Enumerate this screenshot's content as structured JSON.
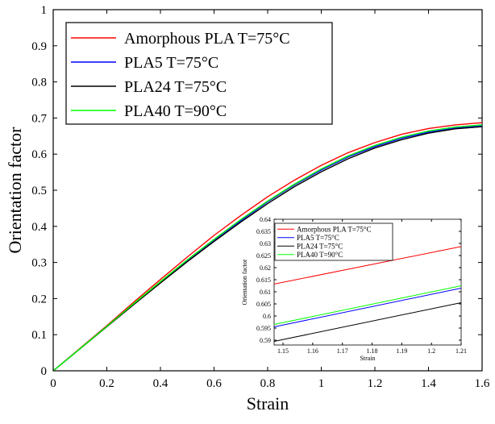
{
  "colors": {
    "amorphous": "#ff0000",
    "pla5": "#0000ff",
    "pla24": "#000000",
    "pla40": "#00ff00"
  },
  "chart_data": [
    {
      "type": "line",
      "xlabel": "Strain",
      "ylabel": "Orientation factor",
      "xlim": [
        0,
        1.6
      ],
      "ylim": [
        0,
        1
      ],
      "xticks": [
        "0",
        "0.2",
        "0.4",
        "0.6",
        "0.8",
        "1",
        "1.2",
        "1.4",
        "1.6"
      ],
      "yticks": [
        "0",
        "0.1",
        "0.2",
        "0.3",
        "0.4",
        "0.5",
        "0.6",
        "0.7",
        "0.8",
        "0.9",
        "1"
      ],
      "grid": false,
      "legend": "top-left",
      "x": [
        0,
        0.1,
        0.2,
        0.3,
        0.4,
        0.5,
        0.6,
        0.7,
        0.8,
        0.9,
        1.0,
        1.1,
        1.2,
        1.3,
        1.4,
        1.5,
        1.6
      ],
      "series": [
        {
          "name": "Amorphous PLA T=75°C",
          "color": "#ff0000",
          "values": [
            0,
            0.062,
            0.125,
            0.19,
            0.253,
            0.315,
            0.375,
            0.43,
            0.482,
            0.528,
            0.569,
            0.604,
            0.632,
            0.655,
            0.671,
            0.681,
            0.687
          ]
        },
        {
          "name": "PLA5 T=75°C",
          "color": "#0000ff",
          "values": [
            0,
            0.061,
            0.123,
            0.185,
            0.245,
            0.305,
            0.362,
            0.416,
            0.468,
            0.515,
            0.556,
            0.592,
            0.621,
            0.644,
            0.661,
            0.672,
            0.679
          ]
        },
        {
          "name": "PLA24 T=75°C",
          "color": "#000000",
          "values": [
            0,
            0.061,
            0.122,
            0.183,
            0.243,
            0.302,
            0.358,
            0.412,
            0.463,
            0.51,
            0.551,
            0.587,
            0.617,
            0.64,
            0.658,
            0.67,
            0.676
          ]
        },
        {
          "name": "PLA40 T=90°C",
          "color": "#00ff00",
          "values": [
            0,
            0.061,
            0.123,
            0.186,
            0.247,
            0.307,
            0.364,
            0.419,
            0.47,
            0.517,
            0.559,
            0.595,
            0.624,
            0.647,
            0.664,
            0.675,
            0.681
          ]
        }
      ]
    },
    {
      "type": "line",
      "xlabel": "Strain",
      "ylabel": "Orientation factor",
      "xlim": [
        1.147,
        1.21
      ],
      "ylim": [
        0.588,
        0.64
      ],
      "xticks": [
        "1.15",
        "1.16",
        "1.17",
        "1.18",
        "1.19",
        "1.2",
        "1.21"
      ],
      "yticks": [
        "0.59",
        "0.595",
        "0.6",
        "0.605",
        "0.61",
        "0.615",
        "0.62",
        "0.625",
        "0.63",
        "0.635",
        "0.64"
      ],
      "grid": false,
      "legend": "top-left",
      "x": [
        1.147,
        1.21
      ],
      "series": [
        {
          "name": "Amorphous PLA T=75°C",
          "color": "#ff0000",
          "values": [
            0.6132,
            0.6287
          ]
        },
        {
          "name": "PLA5 T=75°C",
          "color": "#0000ff",
          "values": [
            0.5955,
            0.6115
          ]
        },
        {
          "name": "PLA24 T=75°C",
          "color": "#000000",
          "values": [
            0.5895,
            0.6055
          ]
        },
        {
          "name": "PLA40 T=90°C",
          "color": "#00ff00",
          "values": [
            0.5965,
            0.6125
          ]
        }
      ]
    }
  ]
}
